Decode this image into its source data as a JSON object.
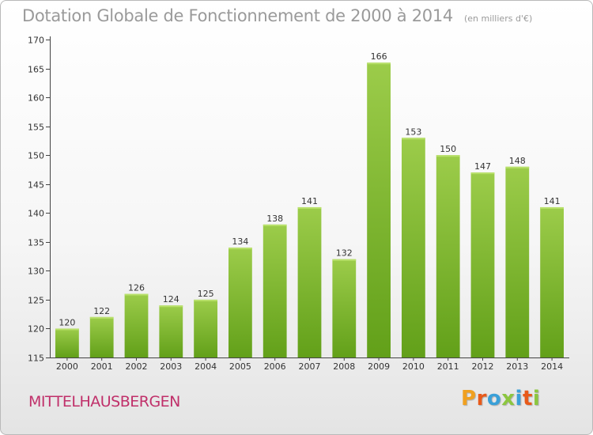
{
  "header": {
    "title": "Dotation Globale de Fonctionnement de 2000 à 2014",
    "unit": "(en milliers d'€)"
  },
  "footer": {
    "commune": "MITTELHAUSBERGEN",
    "logo": [
      "P",
      "r",
      "o",
      "x",
      "i",
      "t",
      "i"
    ],
    "logo_colors": [
      "#f0a020",
      "#e85a1a",
      "#3aa0d8",
      "#8cc63f",
      "#3aa0d8",
      "#e85a1a",
      "#8cc63f"
    ]
  },
  "chart_data": {
    "type": "bar",
    "categories": [
      "2000",
      "2001",
      "2002",
      "2003",
      "2004",
      "2005",
      "2006",
      "2007",
      "2008",
      "2009",
      "2010",
      "2011",
      "2012",
      "2013",
      "2014"
    ],
    "values": [
      120,
      122,
      126,
      124,
      125,
      134,
      138,
      141,
      132,
      166,
      153,
      150,
      147,
      148,
      141
    ],
    "title": "Dotation Globale de Fonctionnement de 2000 à 2014",
    "subtitle": "(en milliers d'€)",
    "xlabel": "",
    "ylabel": "",
    "ylim": [
      115,
      170
    ],
    "yticks": [
      115,
      120,
      125,
      130,
      135,
      140,
      145,
      150,
      155,
      160,
      165,
      170
    ],
    "grid": false,
    "data_labels": true,
    "colors": {
      "bar_light": "#9ccc4a",
      "bar_dark": "#62a019",
      "axis": "#444444",
      "text": "#333333"
    }
  }
}
